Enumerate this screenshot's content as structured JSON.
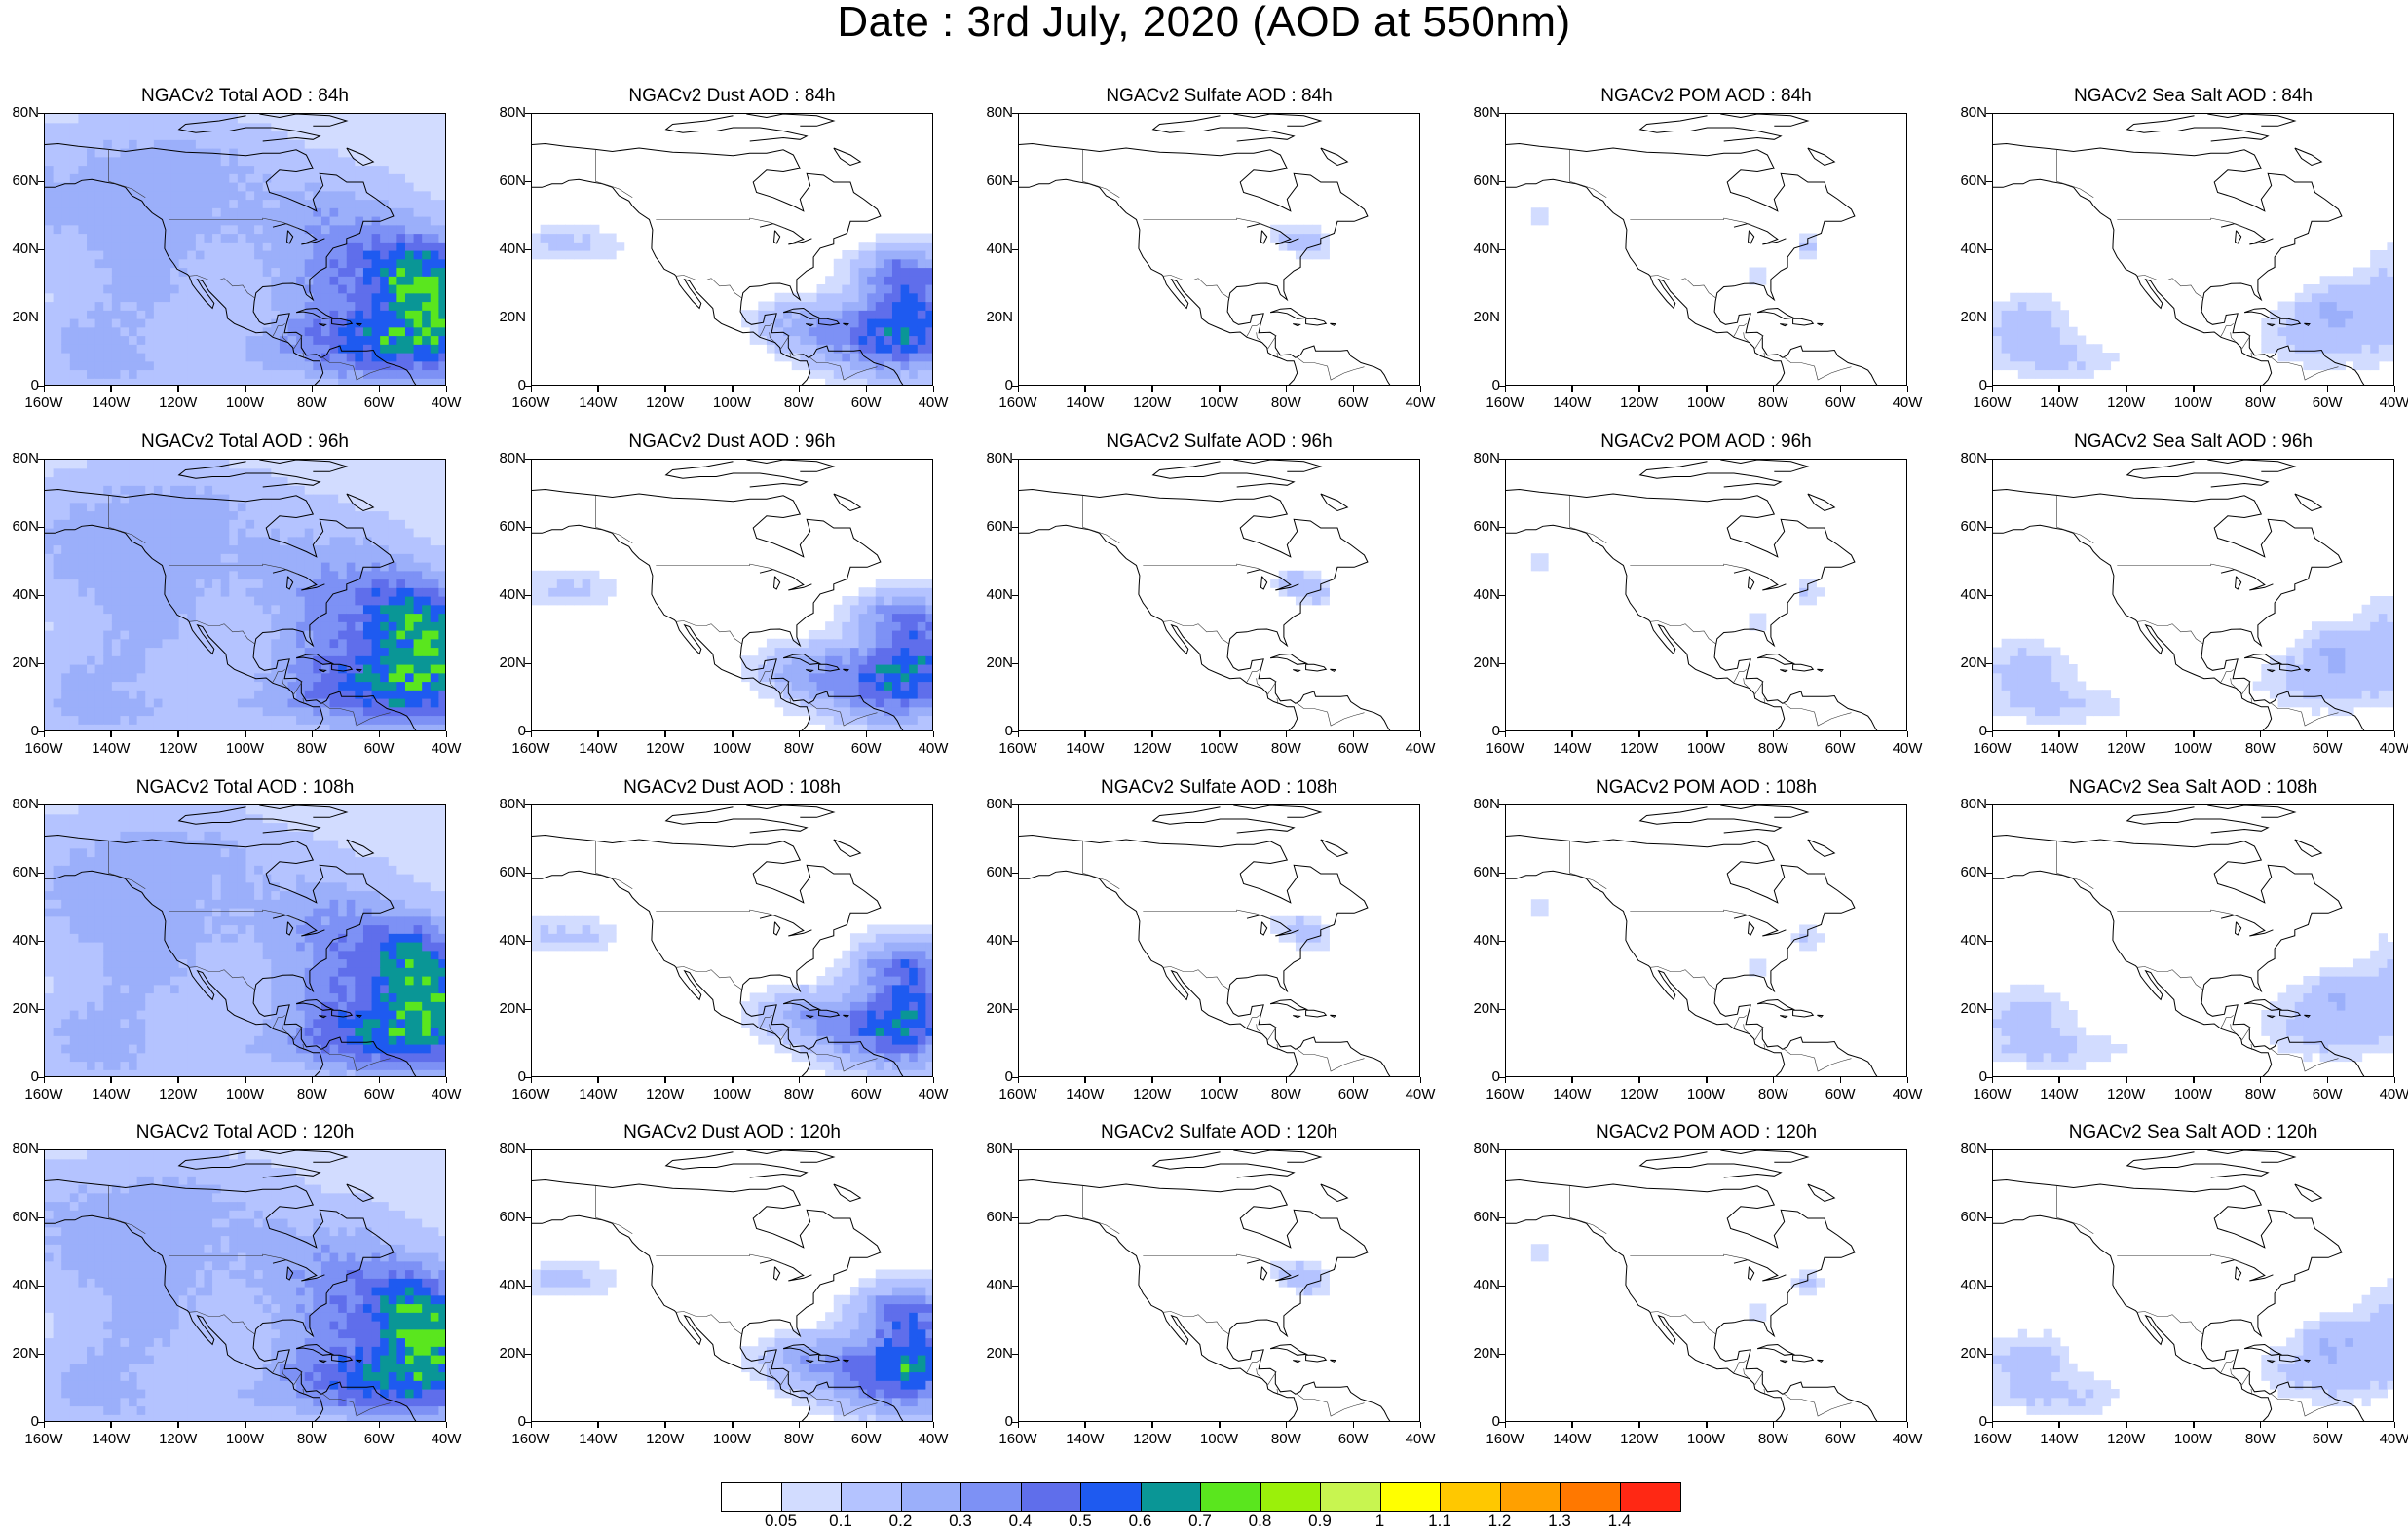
{
  "title": "Date : 3rd July, 2020 (AOD at 550nm)",
  "y_tick_labels": [
    "80N",
    "60N",
    "40N",
    "20N",
    "0"
  ],
  "x_tick_labels": [
    "160W",
    "140W",
    "120W",
    "100W",
    "80W",
    "60W",
    "40W"
  ],
  "rows": [
    {
      "hour": "84h",
      "panels": [
        {
          "title": "NGACv2 Total AOD : 84h",
          "field": "total"
        },
        {
          "title": "NGACv2 Dust AOD : 84h",
          "field": "dust"
        },
        {
          "title": "NGACv2 Sulfate AOD : 84h",
          "field": "sulfate"
        },
        {
          "title": "NGACv2 POM AOD : 84h",
          "field": "pom"
        },
        {
          "title": "NGACv2 Sea Salt AOD : 84h",
          "field": "seasalt"
        }
      ]
    },
    {
      "hour": "96h",
      "panels": [
        {
          "title": "NGACv2 Total AOD : 96h",
          "field": "total"
        },
        {
          "title": "NGACv2 Dust AOD : 96h",
          "field": "dust"
        },
        {
          "title": "NGACv2 Sulfate AOD : 96h",
          "field": "sulfate"
        },
        {
          "title": "NGACv2 POM AOD : 96h",
          "field": "pom"
        },
        {
          "title": "NGACv2 Sea Salt AOD : 96h",
          "field": "seasalt"
        }
      ]
    },
    {
      "hour": "108h",
      "panels": [
        {
          "title": "NGACv2 Total AOD : 108h",
          "field": "total"
        },
        {
          "title": "NGACv2 Dust AOD : 108h",
          "field": "dust"
        },
        {
          "title": "NGACv2 Sulfate AOD : 108h",
          "field": "sulfate"
        },
        {
          "title": "NGACv2 POM AOD : 108h",
          "field": "pom"
        },
        {
          "title": "NGACv2 Sea Salt AOD : 108h",
          "field": "seasalt"
        }
      ]
    },
    {
      "hour": "120h",
      "panels": [
        {
          "title": "NGACv2 Total AOD : 120h",
          "field": "total"
        },
        {
          "title": "NGACv2 Dust AOD : 120h",
          "field": "dust"
        },
        {
          "title": "NGACv2 Sulfate AOD : 120h",
          "field": "sulfate"
        },
        {
          "title": "NGACv2 POM AOD : 120h",
          "field": "pom"
        },
        {
          "title": "NGACv2 Sea Salt  AOD : 120h",
          "field": "seasalt"
        }
      ]
    }
  ],
  "colorbar": {
    "labels": [
      "0.05",
      "0.1",
      "0.2",
      "0.3",
      "0.4",
      "0.5",
      "0.6",
      "0.7",
      "0.8",
      "0.9",
      "1",
      "1.1",
      "1.2",
      "1.3",
      "1.4"
    ],
    "colors": [
      "#ffffff",
      "#d2dcff",
      "#b4c3ff",
      "#9baffa",
      "#7d91f5",
      "#5f6eeb",
      "#1e5af0",
      "#0a9696",
      "#5ae61e",
      "#9bf00a",
      "#c8f550",
      "#ffff00",
      "#ffc800",
      "#ffa000",
      "#ff7800",
      "#ff2814"
    ]
  }
}
